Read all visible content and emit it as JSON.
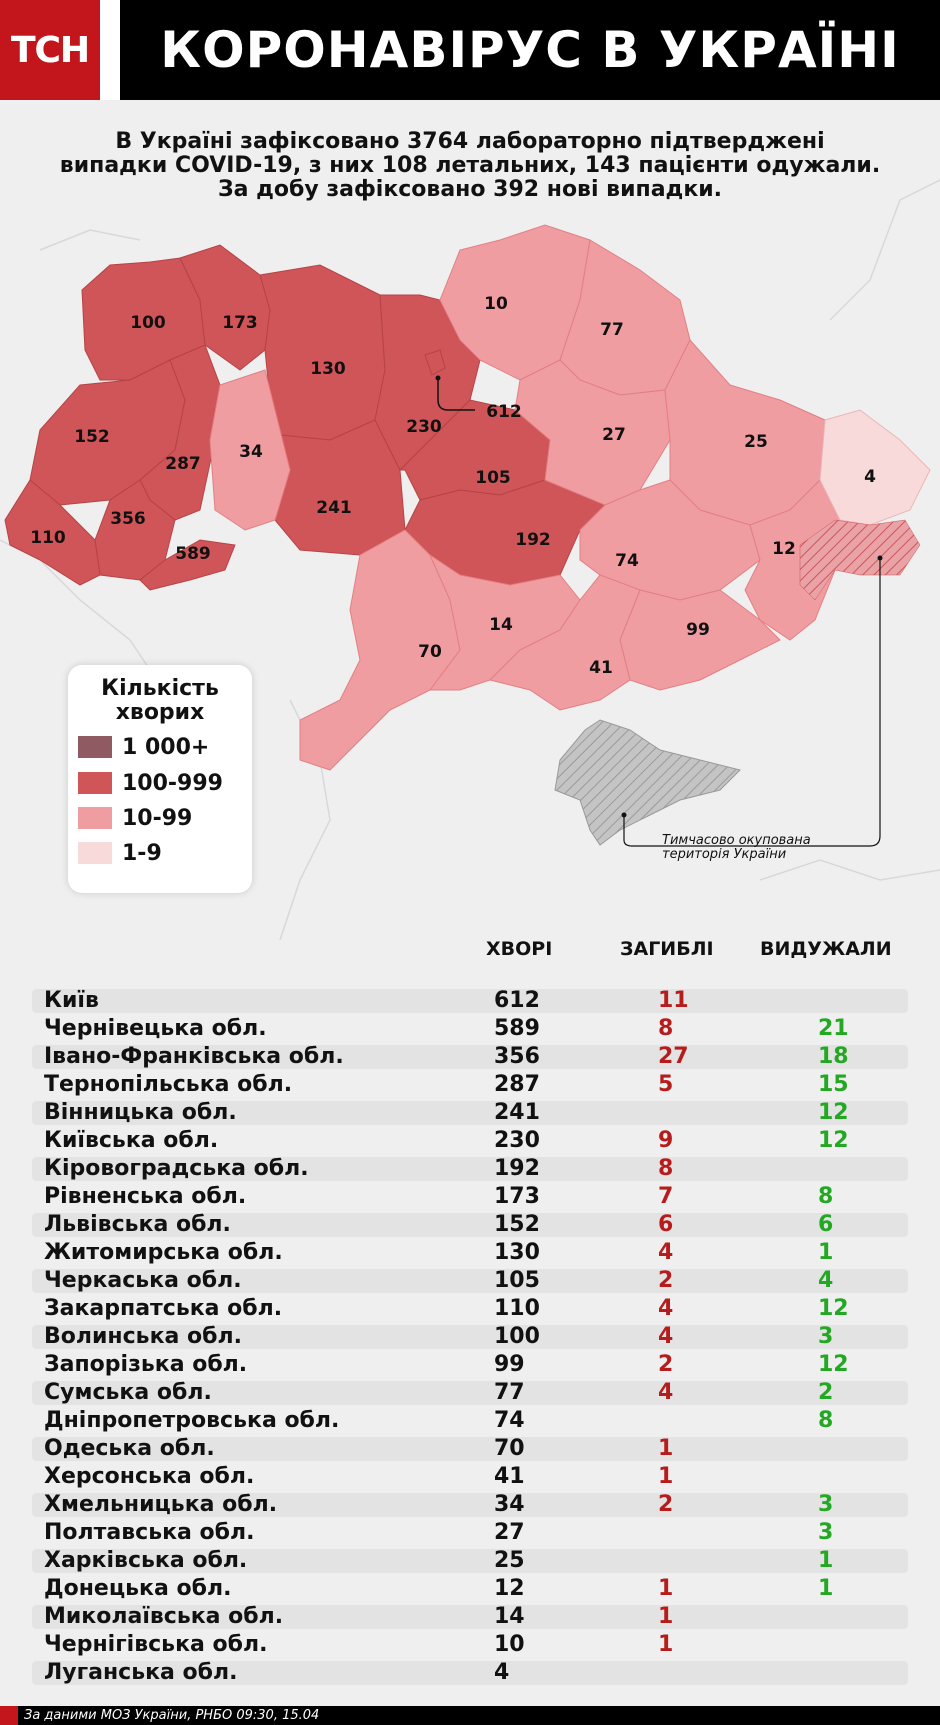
{
  "header": {
    "logo": "ТСН",
    "title": "КОРОНАВІРУС В УКРАЇНІ"
  },
  "intro": {
    "line1": "В Україні зафіксовано 3764 лабораторно підтверджені",
    "line2": "випадки COVID-19, з них 108 летальних, 143 пацієнти одужали.",
    "line3": "За добу зафіксовано 392 нові випадки."
  },
  "legend": {
    "title1": "Кількість",
    "title2": "хворих",
    "items": [
      {
        "label": "1 000+",
        "color": "#8f5a61"
      },
      {
        "label": "100-999",
        "color": "#cf5558"
      },
      {
        "label": "10-99",
        "color": "#f09da1"
      },
      {
        "label": "1-9",
        "color": "#f8dadb"
      }
    ]
  },
  "map": {
    "colors": {
      "high": "#cf5558",
      "mid": "#f09da1",
      "low": "#f8dadb",
      "occupied": "#b5b5b5",
      "background": "#efefef"
    },
    "labels": [
      "100",
      "173",
      "130",
      "612",
      "152",
      "287",
      "34",
      "230",
      "105",
      "356",
      "241",
      "110",
      "589",
      "192",
      "10",
      "77",
      "27",
      "25",
      "4",
      "74",
      "12",
      "14",
      "99",
      "70",
      "41"
    ],
    "occupied_note_line1": "Тимчасово окупована",
    "occupied_note_line2": "територія України"
  },
  "table": {
    "headers": {
      "sick": "ХВОРІ",
      "dead": "ЗАГИБЛІ",
      "recovered": "ВИДУЖАЛИ"
    },
    "rows": [
      {
        "region": "Київ",
        "sick": "612",
        "dead": "11",
        "recovered": ""
      },
      {
        "region": "Чернівецька обл.",
        "sick": "589",
        "dead": "8",
        "recovered": "21"
      },
      {
        "region": "Івано-Франківська обл.",
        "sick": "356",
        "dead": "27",
        "recovered": "18"
      },
      {
        "region": "Тернопільська обл.",
        "sick": "287",
        "dead": "5",
        "recovered": "15"
      },
      {
        "region": "Вінницька обл.",
        "sick": "241",
        "dead": "",
        "recovered": "12"
      },
      {
        "region": "Київська обл.",
        "sick": "230",
        "dead": "9",
        "recovered": "12"
      },
      {
        "region": "Кіровоградська обл.",
        "sick": "192",
        "dead": "8",
        "recovered": ""
      },
      {
        "region": "Рівненська обл.",
        "sick": "173",
        "dead": "7",
        "recovered": "8"
      },
      {
        "region": "Львівська обл.",
        "sick": "152",
        "dead": "6",
        "recovered": "6"
      },
      {
        "region": "Житомирська обл.",
        "sick": "130",
        "dead": "4",
        "recovered": "1"
      },
      {
        "region": "Черкаська обл.",
        "sick": "105",
        "dead": "2",
        "recovered": "4"
      },
      {
        "region": "Закарпатська обл.",
        "sick": "110",
        "dead": "4",
        "recovered": "12"
      },
      {
        "region": "Волинська обл.",
        "sick": "100",
        "dead": "4",
        "recovered": "3"
      },
      {
        "region": "Запорізька обл.",
        "sick": "99",
        "dead": "2",
        "recovered": "12"
      },
      {
        "region": "Сумська обл.",
        "sick": "77",
        "dead": "4",
        "recovered": "2"
      },
      {
        "region": "Дніпропетровська обл.",
        "sick": "74",
        "dead": "",
        "recovered": "8"
      },
      {
        "region": "Одеська обл.",
        "sick": "70",
        "dead": "1",
        "recovered": ""
      },
      {
        "region": "Херсонська обл.",
        "sick": "41",
        "dead": "1",
        "recovered": ""
      },
      {
        "region": "Хмельницька обл.",
        "sick": "34",
        "dead": "2",
        "recovered": "3"
      },
      {
        "region": "Полтавська обл.",
        "sick": "27",
        "dead": "",
        "recovered": "3"
      },
      {
        "region": "Харківська обл.",
        "sick": "25",
        "dead": "",
        "recovered": "1"
      },
      {
        "region": "Донецька обл.",
        "sick": "12",
        "dead": "1",
        "recovered": "1"
      },
      {
        "region": "Миколаївська обл.",
        "sick": "14",
        "dead": "1",
        "recovered": ""
      },
      {
        "region": "Чернігівська обл.",
        "sick": "10",
        "dead": "1",
        "recovered": ""
      },
      {
        "region": "Луганська обл.",
        "sick": "4",
        "dead": "",
        "recovered": ""
      }
    ]
  },
  "footer": {
    "source": "За даними МОЗ України, РНБО  09:30, 15.04"
  }
}
